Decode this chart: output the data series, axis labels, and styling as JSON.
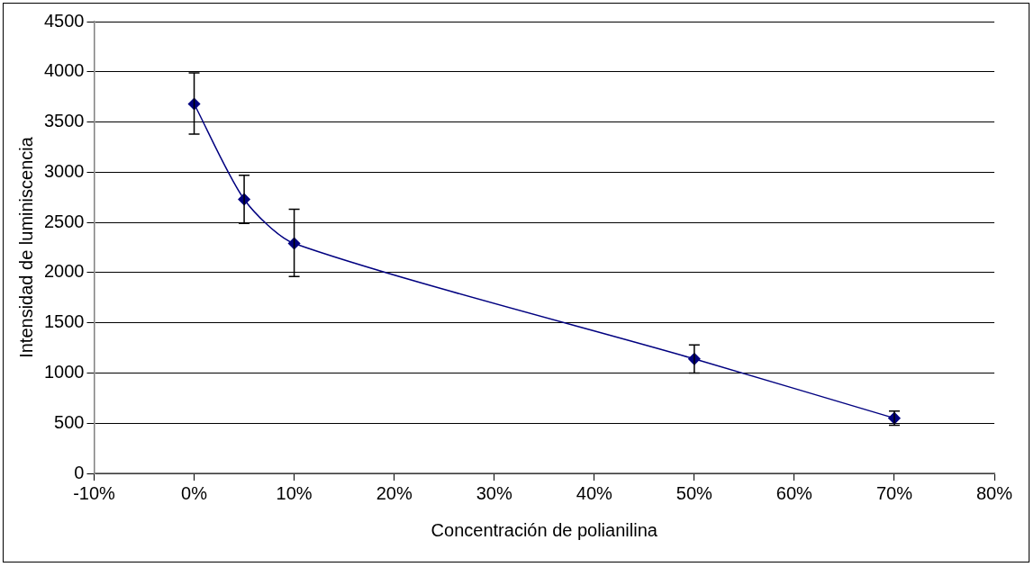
{
  "chart_data": {
    "type": "line",
    "xlabel": "Concentración de polianilina",
    "ylabel": "Intensidad de luminiscencia",
    "x": [
      0,
      5,
      10,
      50,
      70
    ],
    "series": [
      {
        "color": "#000080",
        "values": [
          3680,
          2730,
          2290,
          1140,
          550
        ],
        "errors": [
          [
            3380,
            3990
          ],
          [
            2490,
            2970
          ],
          [
            1960,
            2630
          ],
          [
            1000,
            1280
          ],
          [
            480,
            620
          ]
        ]
      }
    ],
    "xlim": [
      -10,
      80
    ],
    "xticks": [
      {
        "value": -10,
        "label": "-10%"
      },
      {
        "value": 0,
        "label": "0%"
      },
      {
        "value": 10,
        "label": "10%"
      },
      {
        "value": 20,
        "label": "20%"
      },
      {
        "value": 30,
        "label": "30%"
      },
      {
        "value": 40,
        "label": "40%"
      },
      {
        "value": 50,
        "label": "50%"
      },
      {
        "value": 60,
        "label": "60%"
      },
      {
        "value": 70,
        "label": "70%"
      },
      {
        "value": 80,
        "label": "80%"
      }
    ],
    "ylim": [
      0,
      4500
    ],
    "yticks": [
      0,
      500,
      1000,
      1500,
      2000,
      2500,
      3000,
      3500,
      4000,
      4500
    ],
    "grid": "y",
    "legend": false,
    "marker": "diamond",
    "line_style": "solid"
  }
}
